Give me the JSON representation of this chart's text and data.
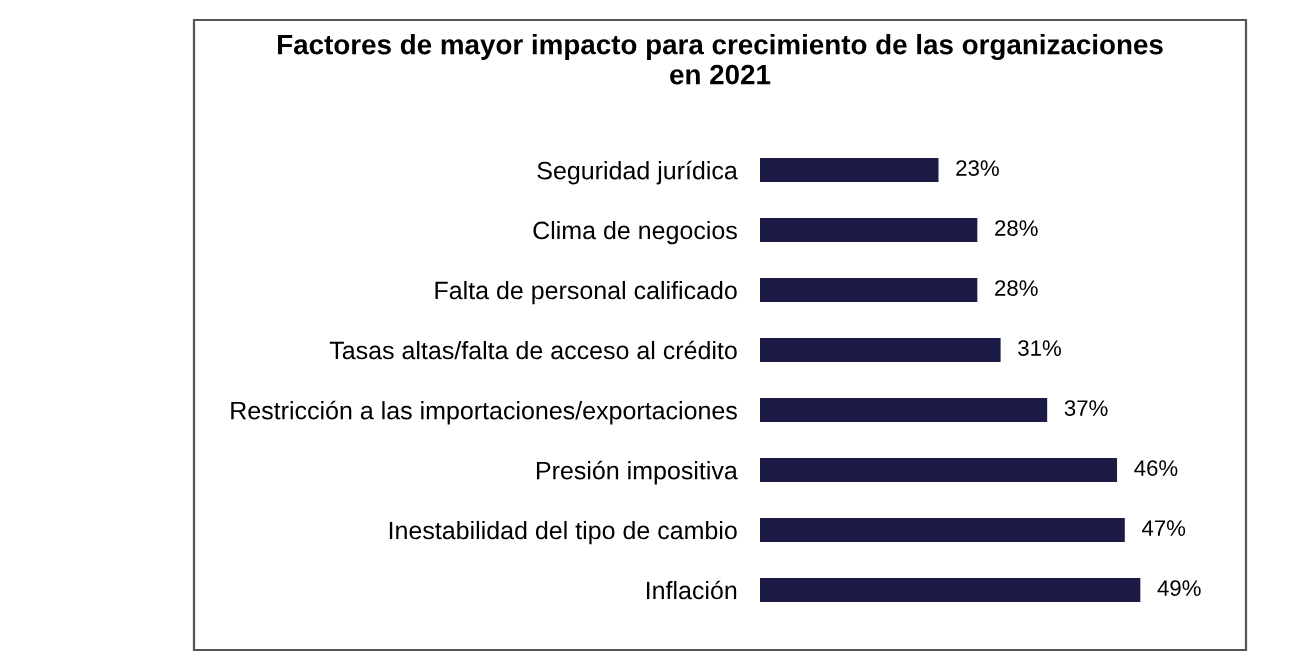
{
  "chart_data": {
    "type": "bar",
    "orientation": "horizontal",
    "title": "Factores de mayor impacto para crecimiento de las organizaciones\nen 2021",
    "categories": [
      "Seguridad jurídica",
      "Clima de negocios",
      "Falta de personal calificado",
      "Tasas altas/falta de acceso al crédito",
      "Restricción a las importaciones/exportaciones",
      "Presión impositiva",
      "Inestabilidad del tipo de cambio",
      "Inflación"
    ],
    "values": [
      23,
      28,
      28,
      31,
      37,
      46,
      47,
      49
    ],
    "value_labels": [
      "23%",
      "28%",
      "28%",
      "31%",
      "37%",
      "46%",
      "47%",
      "49%"
    ],
    "color": "#1b1b45",
    "tick_labels": "y"
  }
}
